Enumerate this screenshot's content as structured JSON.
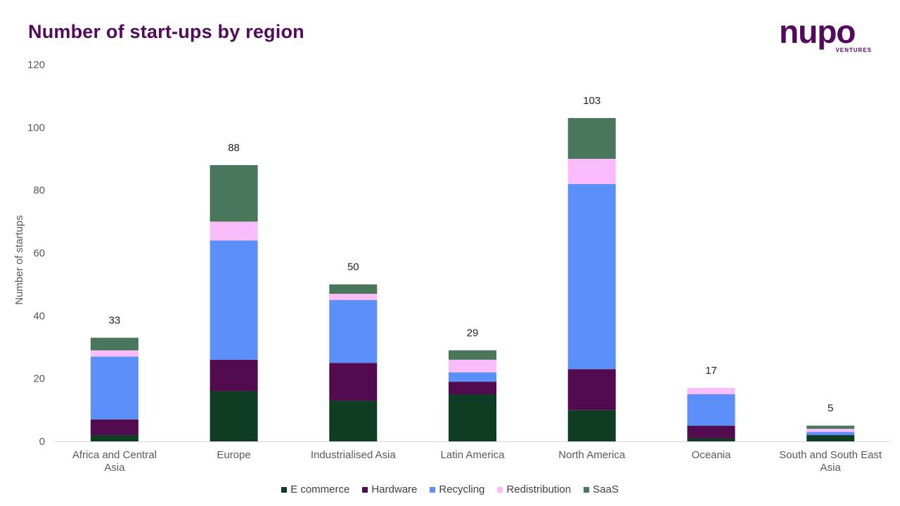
{
  "header": {
    "title": "Number of start-ups by region",
    "logo_text": "nupo",
    "logo_subtext": "VENTURES"
  },
  "chart_data": {
    "type": "bar",
    "stacked": true,
    "title": "Number of start-ups by region",
    "xlabel": "",
    "ylabel": "Number of startups",
    "ylim": [
      0,
      120
    ],
    "yticks": [
      0,
      20,
      40,
      60,
      80,
      100,
      120
    ],
    "grid": false,
    "legend_position": "bottom",
    "categories": [
      "Africa and Central Asia",
      "Europe",
      "Industrialised Asia",
      "Latin America",
      "North America",
      "Oceania",
      "South and South East Asia"
    ],
    "series": [
      {
        "name": "E commerce",
        "color": "#0f3d24",
        "values": [
          2,
          16,
          13,
          15,
          10,
          1,
          2
        ]
      },
      {
        "name": "Hardware",
        "color": "#520b4f",
        "values": [
          5,
          10,
          12,
          4,
          13,
          4,
          0
        ]
      },
      {
        "name": "Recycling",
        "color": "#5b8ff9",
        "values": [
          20,
          38,
          20,
          3,
          59,
          10,
          1
        ]
      },
      {
        "name": "Redistribution",
        "color": "#fbbcfb",
        "values": [
          2,
          6,
          2,
          4,
          8,
          2,
          1
        ]
      },
      {
        "name": "SaaS",
        "color": "#4a765c",
        "values": [
          4,
          18,
          3,
          3,
          13,
          0,
          1
        ]
      }
    ],
    "totals": [
      33,
      88,
      50,
      29,
      103,
      17,
      5
    ]
  }
}
